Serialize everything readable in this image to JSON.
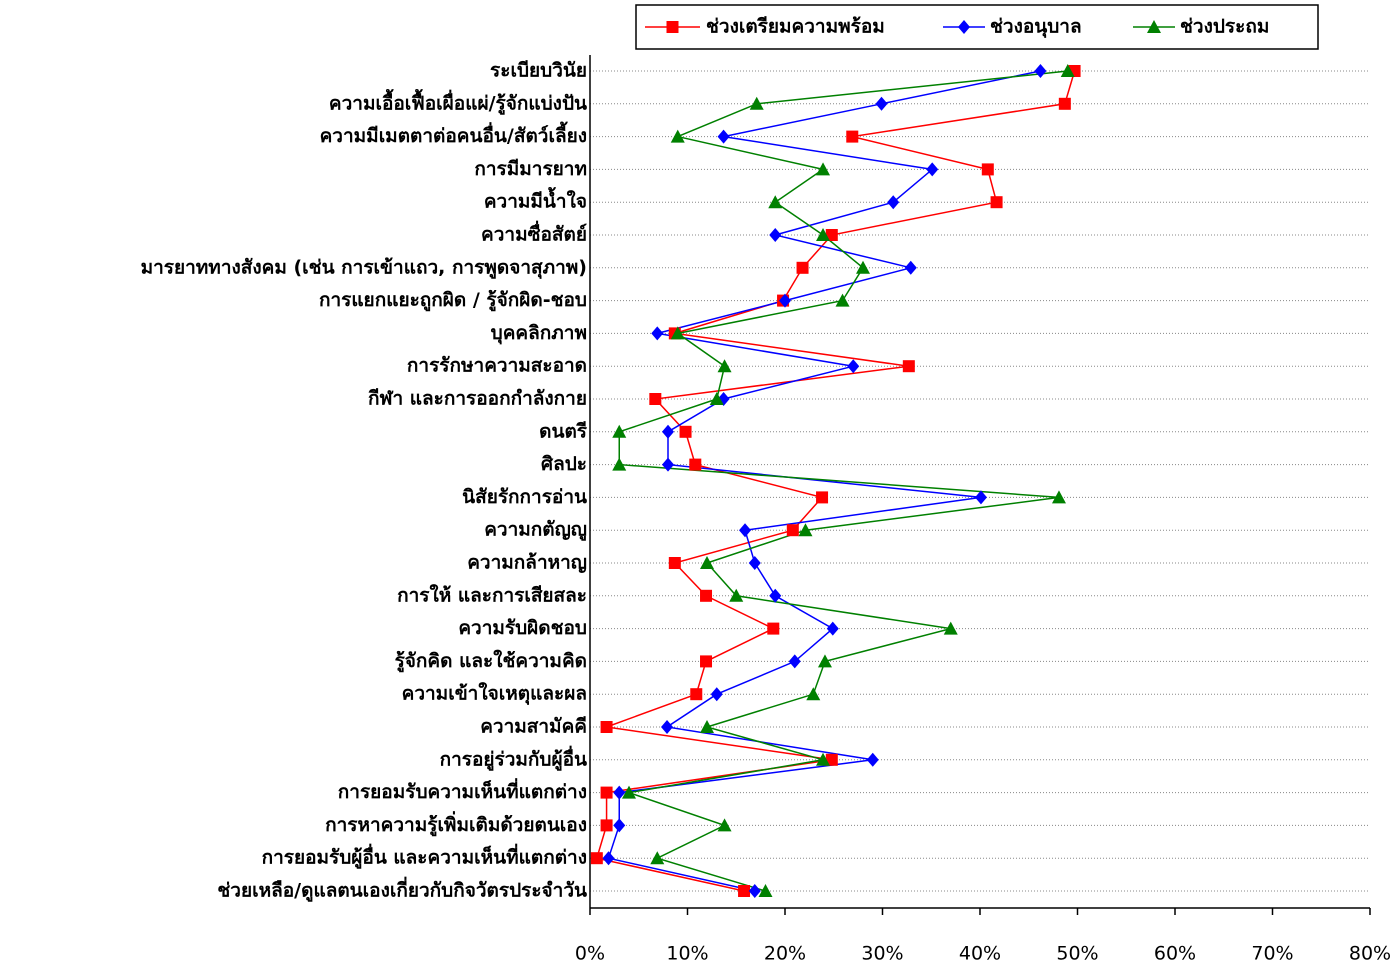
{
  "chart_data": {
    "type": "line",
    "orientation": "horizontal",
    "categories": [
      "ระเบียบวินัย",
      "ความเอื้อเฟื้อเผื่อแผ่/รู้จักแบ่งปัน",
      "ความมีเมตตาต่อคนอื่น/สัตว์เลี้ยง",
      "การมีมารยาท",
      "ความมีน้ำใจ",
      "ความซื่อสัตย์",
      "มารยาททางสังคม (เช่น การเข้าแถว, การพูดจาสุภาพ)",
      "การแยกแยะถูกผิด / รู้จักผิด-ชอบ",
      "บุคคลิกภาพ",
      "การรักษาความสะอาด",
      "กีฬา และการออกกำลังกาย",
      "ดนตรี",
      "ศิลปะ",
      "นิสัยรักการอ่าน",
      "ความกตัญญู",
      "ความกล้าหาญ",
      "การให้ และการเสียสละ",
      "ความรับผิดชอบ",
      "รู้จักคิด และใช้ความคิด",
      "ความเข้าใจเหตุและผล",
      "ความสามัคคี",
      "การอยู่ร่วมกับผู้อื่น",
      "การยอมรับความเห็นที่แตกต่าง",
      "การหาความรู้เพิ่มเติมด้วยตนเอง",
      "การยอมรับผู้อื่น และความเห็นที่แตกต่าง",
      "ช่วยเหลือ/ดูแลตนเองเกี่ยวกับกิจวัตรประจำวัน"
    ],
    "series": [
      {
        "name": "ช่วงเตรียมความพร้อม",
        "color": "#ff0000",
        "marker": "square",
        "values": [
          49.7,
          48.7,
          26.9,
          40.8,
          41.7,
          24.8,
          21.8,
          19.8,
          8.7,
          32.7,
          6.7,
          9.8,
          10.8,
          23.8,
          20.8,
          8.7,
          11.9,
          18.8,
          11.9,
          10.9,
          1.7,
          24.8,
          1.7,
          1.7,
          0.7,
          15.8
        ]
      },
      {
        "name": "ช่วงอนุบาล",
        "color": "#0000ff",
        "marker": "diamond",
        "values": [
          46.2,
          29.9,
          13.7,
          35.1,
          31.1,
          19.0,
          32.9,
          20.0,
          6.9,
          27.0,
          13.7,
          8.0,
          8.0,
          40.1,
          15.9,
          16.9,
          19.0,
          24.9,
          21.0,
          13.0,
          7.9,
          29.0,
          3.0,
          3.0,
          1.9,
          16.9
        ]
      },
      {
        "name": "ช่วงประถม",
        "color": "#008000",
        "marker": "triangle",
        "values": [
          49.0,
          17.1,
          9.0,
          23.9,
          19.0,
          23.9,
          28.0,
          25.9,
          9.0,
          13.8,
          13.0,
          3.0,
          3.0,
          48.1,
          22.1,
          12.0,
          15.0,
          37.0,
          24.1,
          22.9,
          12.0,
          23.9,
          4.0,
          13.8,
          6.9,
          18.0
        ]
      }
    ],
    "xlim": [
      0,
      80
    ],
    "xticks": [
      {
        "value": 0,
        "label": "0%"
      },
      {
        "value": 10,
        "label": "10%"
      },
      {
        "value": 20,
        "label": "20%"
      },
      {
        "value": 30,
        "label": "30%"
      },
      {
        "value": 40,
        "label": "40%"
      },
      {
        "value": 50,
        "label": "50%"
      },
      {
        "value": 60,
        "label": "60%"
      },
      {
        "value": 70,
        "label": "70%"
      },
      {
        "value": 80,
        "label": "80%"
      }
    ],
    "grid": true,
    "legend": "top"
  }
}
